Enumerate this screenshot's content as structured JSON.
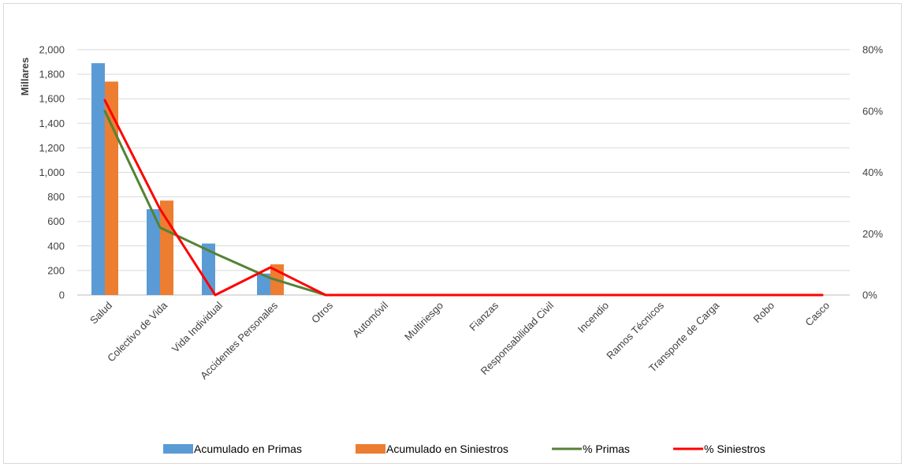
{
  "chart_data": {
    "type": "bar",
    "title": "",
    "xlabel": "",
    "ylabel": "Millares",
    "ylim": [
      0,
      2000
    ],
    "y_ticks": [
      "0",
      "200",
      "400",
      "600",
      "800",
      "1,000",
      "1,200",
      "1,400",
      "1,600",
      "1,800",
      "2,000"
    ],
    "y2lim": [
      0,
      0.8
    ],
    "y2_ticks": [
      "0%",
      "20%",
      "40%",
      "60%",
      "80%"
    ],
    "grid": true,
    "legend_position": "bottom",
    "categories": [
      "Salud",
      "Colectivo de Vida",
      "Vida Individual",
      "Accidentes Personales",
      "Otros",
      "Automóvil",
      "Multiriesgo",
      "Fianzas",
      "Responsabilidad Civil",
      "Incendio",
      "Ramos Técnicos",
      "Transporte de Carga",
      "Robo",
      "Casco"
    ],
    "series": [
      {
        "name": "Acumulado en Primas",
        "type": "bar",
        "axis": "left",
        "color": "#5b9bd5",
        "values": [
          1890,
          700,
          420,
          175,
          0,
          0,
          0,
          0,
          0,
          0,
          0,
          0,
          0,
          0
        ]
      },
      {
        "name": "Acumulado en Siniestros",
        "type": "bar",
        "axis": "left",
        "color": "#ed7d31",
        "values": [
          1740,
          770,
          0,
          250,
          0,
          0,
          0,
          0,
          0,
          0,
          0,
          0,
          0,
          0
        ]
      },
      {
        "name": "% Primas",
        "type": "line",
        "axis": "right",
        "color": "#548235",
        "values": [
          0.6,
          0.22,
          0.135,
          0.055,
          0,
          0,
          0,
          0,
          0,
          0,
          0,
          0,
          0,
          0
        ]
      },
      {
        "name": "% Siniestros",
        "type": "line",
        "axis": "right",
        "color": "#ff0000",
        "values": [
          0.635,
          0.28,
          0,
          0.09,
          0,
          0,
          0,
          0,
          0,
          0,
          0,
          0,
          0,
          0
        ]
      }
    ]
  }
}
